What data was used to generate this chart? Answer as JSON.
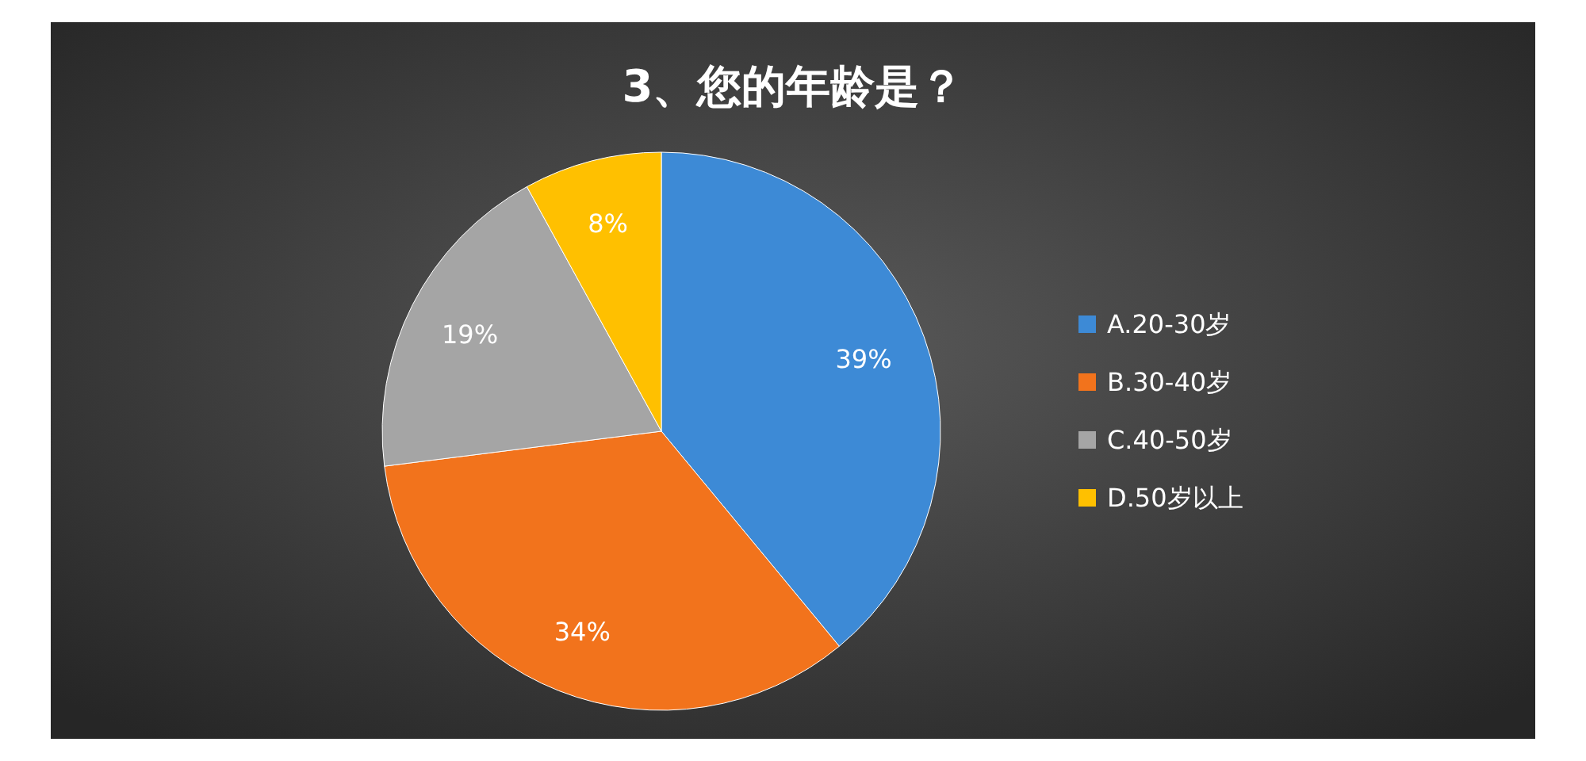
{
  "chart_data": {
    "type": "pie",
    "title": "3、您的年龄是？",
    "categories": [
      "A.20-30岁",
      "B.30-40岁",
      "C.40-50岁",
      "D.50岁以上"
    ],
    "values": [
      39,
      34,
      19,
      8
    ],
    "colors": [
      "#3d8ad6",
      "#f2731c",
      "#a5a5a5",
      "#ffc000"
    ],
    "value_labels": [
      "39%",
      "34%",
      "19%",
      "8%"
    ],
    "legend": "right"
  }
}
